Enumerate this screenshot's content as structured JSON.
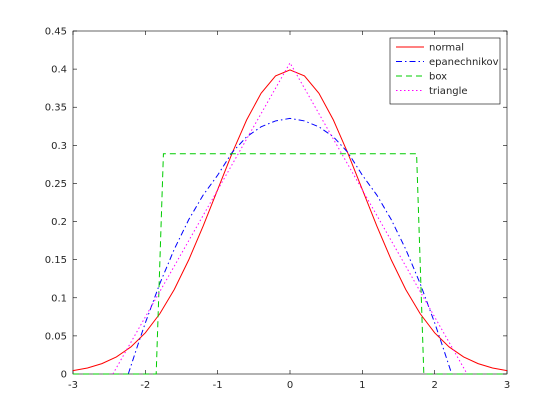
{
  "chart_data": {
    "type": "line",
    "title": "",
    "xlabel": "",
    "ylabel": "",
    "xlim": [
      -3,
      3
    ],
    "ylim": [
      0,
      0.45
    ],
    "xticks": [
      -3,
      -2,
      -1,
      0,
      1,
      2,
      3
    ],
    "yticks": [
      0,
      0.05,
      0.1,
      0.15,
      0.2,
      0.25,
      0.3,
      0.35,
      0.4,
      0.45
    ],
    "xtick_labels": [
      "-3",
      "-2",
      "-1",
      "0",
      "1",
      "2",
      "3"
    ],
    "ytick_labels": [
      "0",
      "0.05",
      "0.1",
      "0.15",
      "0.2",
      "0.25",
      "0.3",
      "0.35",
      "0.4",
      "0.45"
    ],
    "grid": false,
    "legend_position": "top-right",
    "series": [
      {
        "name": "normal",
        "color": "#ff0000",
        "dash": "solid",
        "x": [
          -3,
          -2.8,
          -2.6,
          -2.4,
          -2.2,
          -2,
          -1.8,
          -1.6,
          -1.4,
          -1.2,
          -1,
          -0.8,
          -0.6,
          -0.4,
          -0.2,
          0,
          0.2,
          0.4,
          0.6,
          0.8,
          1,
          1.2,
          1.4,
          1.6,
          1.8,
          2,
          2.2,
          2.4,
          2.6,
          2.8,
          3
        ],
        "y": [
          0.0044,
          0.0079,
          0.0136,
          0.0224,
          0.0355,
          0.054,
          0.079,
          0.1109,
          0.1497,
          0.1942,
          0.242,
          0.2897,
          0.3332,
          0.3683,
          0.391,
          0.3989,
          0.391,
          0.3683,
          0.3332,
          0.2897,
          0.242,
          0.1942,
          0.1497,
          0.1109,
          0.079,
          0.054,
          0.0355,
          0.0224,
          0.0136,
          0.0079,
          0.0044
        ]
      },
      {
        "name": "epanechnikov",
        "color": "#0000ff",
        "dash": "dashdot",
        "x": [
          -2.236,
          -2.1,
          -2,
          -1.8,
          -1.6,
          -1.4,
          -1.2,
          -1,
          -0.8,
          -0.6,
          -0.4,
          -0.2,
          0,
          0.2,
          0.4,
          0.6,
          0.8,
          1,
          1.2,
          1.4,
          1.6,
          1.8,
          2,
          2.1,
          2.236
        ],
        "y": [
          0,
          0.0392,
          0.0671,
          0.1185,
          0.1637,
          0.2025,
          0.2348,
          0.2609,
          0.2907,
          0.3112,
          0.3243,
          0.332,
          0.3354,
          0.332,
          0.3243,
          0.3112,
          0.2907,
          0.2609,
          0.2348,
          0.2025,
          0.1637,
          0.1185,
          0.0671,
          0.0392,
          0
        ]
      },
      {
        "name": "box",
        "color": "#00cc00",
        "dash": "dashed",
        "x": [
          -3,
          -1.85,
          -1.75,
          -1.75,
          1.75,
          1.75,
          1.85,
          3
        ],
        "y": [
          0,
          0,
          0.289,
          0.289,
          0.289,
          0.289,
          0,
          0
        ]
      },
      {
        "name": "triangle",
        "color": "#ff00ff",
        "dash": "dotted",
        "x": [
          -2.449,
          0,
          2.449
        ],
        "y": [
          0,
          0.4082,
          0
        ]
      }
    ]
  }
}
